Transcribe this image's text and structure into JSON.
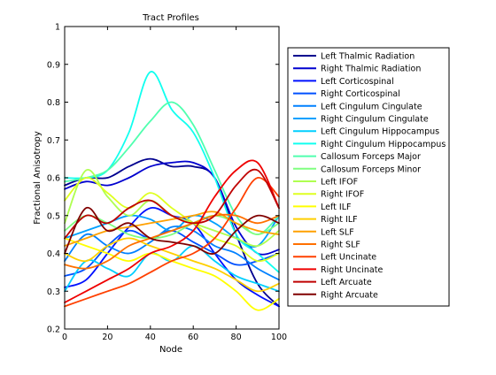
{
  "chart_data": {
    "type": "line",
    "title": "Tract Profiles",
    "xlabel": "Node",
    "ylabel": "Fractional Anisotropy",
    "xlim": [
      0,
      100
    ],
    "ylim": [
      0.2,
      1
    ],
    "xticks": [
      0,
      20,
      40,
      60,
      80,
      100
    ],
    "yticks": [
      0.2,
      0.3,
      0.4,
      0.5,
      0.6,
      0.7,
      0.8,
      0.9,
      1
    ],
    "xtick_labels": [
      "0",
      "20",
      "40",
      "60",
      "80",
      "100"
    ],
    "ytick_labels": [
      "0.2",
      "0.3",
      "0.4",
      "0.5",
      "0.6",
      "0.7",
      "0.8",
      "0.9",
      "1"
    ],
    "grid": false,
    "legend_position": "outside-right",
    "x": [
      0,
      10,
      20,
      30,
      40,
      50,
      60,
      70,
      80,
      90,
      100
    ],
    "series": [
      {
        "name": "Left Thalmic Radiation",
        "color": "#00008f",
        "values": [
          0.58,
          0.6,
          0.6,
          0.63,
          0.65,
          0.63,
          0.63,
          0.6,
          0.45,
          0.32,
          0.26
        ]
      },
      {
        "name": "Right Thalmic Radiation",
        "color": "#0000cf",
        "values": [
          0.57,
          0.59,
          0.58,
          0.6,
          0.63,
          0.64,
          0.64,
          0.6,
          0.47,
          0.4,
          0.41
        ]
      },
      {
        "name": "Left Corticospinal",
        "color": "#0010ff",
        "values": [
          0.31,
          0.33,
          0.4,
          0.47,
          0.52,
          0.5,
          0.48,
          0.4,
          0.33,
          0.29,
          0.26
        ]
      },
      {
        "name": "Right Corticospinal",
        "color": "#0050ff",
        "values": [
          0.34,
          0.36,
          0.42,
          0.46,
          0.44,
          0.46,
          0.43,
          0.4,
          0.37,
          0.38,
          0.4
        ]
      },
      {
        "name": "Left Cingulum Cingulate",
        "color": "#0080ff",
        "values": [
          0.38,
          0.45,
          0.42,
          0.4,
          0.43,
          0.47,
          0.46,
          0.42,
          0.4,
          0.36,
          0.33
        ]
      },
      {
        "name": "Right Cingulum Cingulate",
        "color": "#00a0ff",
        "values": [
          0.44,
          0.46,
          0.48,
          0.5,
          0.49,
          0.46,
          0.5,
          0.48,
          0.44,
          0.42,
          0.5
        ]
      },
      {
        "name": "Left Cingulum Hippocampus",
        "color": "#00cfff",
        "values": [
          0.3,
          0.38,
          0.36,
          0.34,
          0.4,
          0.38,
          0.42,
          0.38,
          0.34,
          0.32,
          0.3
        ]
      },
      {
        "name": "Right Cingulum Hippocampus",
        "color": "#10ffef",
        "values": [
          0.6,
          0.6,
          0.62,
          0.72,
          0.88,
          0.78,
          0.72,
          0.6,
          0.45,
          0.4,
          0.35
        ]
      },
      {
        "name": "Callosum Forceps Major",
        "color": "#50ffaf",
        "values": [
          0.59,
          0.6,
          0.62,
          0.68,
          0.75,
          0.8,
          0.74,
          0.62,
          0.5,
          0.45,
          0.5
        ]
      },
      {
        "name": "Callosum Forceps Minor",
        "color": "#80ff80",
        "values": [
          0.46,
          0.5,
          0.48,
          0.45,
          0.44,
          0.45,
          0.48,
          0.5,
          0.48,
          0.45,
          0.48
        ]
      },
      {
        "name": "Left IFOF",
        "color": "#afff50",
        "values": [
          0.48,
          0.62,
          0.55,
          0.5,
          0.54,
          0.5,
          0.48,
          0.46,
          0.44,
          0.42,
          0.46
        ]
      },
      {
        "name": "Right IFOF",
        "color": "#dfff20",
        "values": [
          0.54,
          0.6,
          0.56,
          0.52,
          0.56,
          0.52,
          0.48,
          0.44,
          0.42,
          0.38,
          0.4
        ]
      },
      {
        "name": "Left ILF",
        "color": "#ffff00",
        "values": [
          0.44,
          0.42,
          0.4,
          0.38,
          0.4,
          0.38,
          0.36,
          0.34,
          0.3,
          0.25,
          0.28
        ]
      },
      {
        "name": "Right ILF",
        "color": "#ffcf00",
        "values": [
          0.4,
          0.38,
          0.42,
          0.44,
          0.42,
          0.4,
          0.38,
          0.36,
          0.33,
          0.3,
          0.32
        ]
      },
      {
        "name": "Left SLF",
        "color": "#ffa000",
        "values": [
          0.42,
          0.44,
          0.46,
          0.47,
          0.48,
          0.49,
          0.5,
          0.51,
          0.48,
          0.46,
          0.45
        ]
      },
      {
        "name": "Right SLF",
        "color": "#ff7000",
        "values": [
          0.37,
          0.36,
          0.38,
          0.42,
          0.44,
          0.46,
          0.48,
          0.5,
          0.5,
          0.48,
          0.5
        ]
      },
      {
        "name": "Left Uncinate",
        "color": "#ff4000",
        "values": [
          0.26,
          0.28,
          0.3,
          0.32,
          0.35,
          0.38,
          0.4,
          0.44,
          0.52,
          0.6,
          0.55
        ]
      },
      {
        "name": "Right Uncinate",
        "color": "#ef0000",
        "values": [
          0.27,
          0.3,
          0.33,
          0.36,
          0.4,
          0.42,
          0.46,
          0.55,
          0.62,
          0.64,
          0.52
        ]
      },
      {
        "name": "Left Arcuate",
        "color": "#bf0000",
        "values": [
          0.44,
          0.5,
          0.48,
          0.52,
          0.54,
          0.5,
          0.48,
          0.5,
          0.58,
          0.62,
          0.52
        ]
      },
      {
        "name": "Right Arcuate",
        "color": "#800000",
        "values": [
          0.4,
          0.52,
          0.46,
          0.48,
          0.44,
          0.43,
          0.42,
          0.4,
          0.46,
          0.5,
          0.48
        ]
      }
    ]
  }
}
